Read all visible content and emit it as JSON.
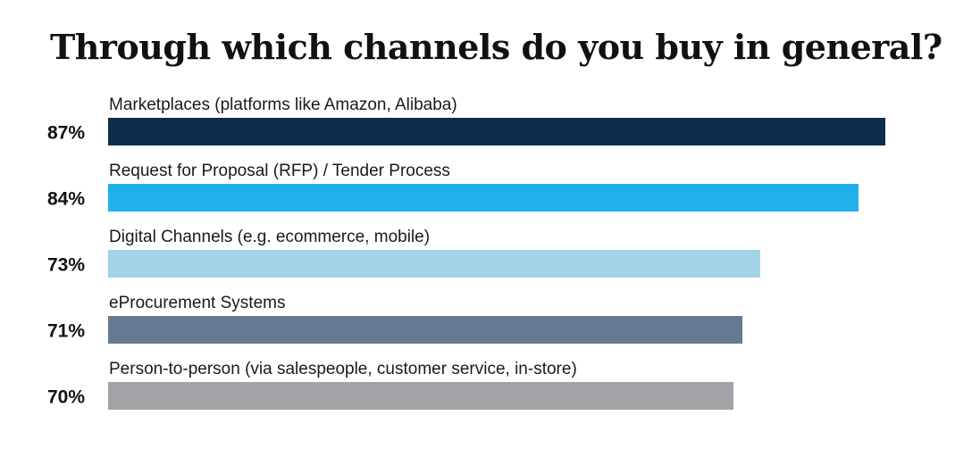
{
  "chart_data": {
    "type": "bar",
    "title": "Through which channels do you buy in general?",
    "categories": [
      "Marketplaces (platforms like Amazon, Alibaba)",
      "Request for Proposal (RFP) / Tender Process",
      "Digital Channels (e.g. ecommerce, mobile)",
      "eProcurement Systems",
      "Person-to-person (via salespeople, customer service, in-store)"
    ],
    "values": [
      87,
      84,
      73,
      71,
      70
    ],
    "value_labels": [
      "87%",
      "84%",
      "73%",
      "71%",
      "70%"
    ],
    "colors": [
      "#0d2d4b",
      "#1fb0ea",
      "#a4d2e6",
      "#667b92",
      "#a2a3a6"
    ],
    "xlim": [
      0,
      87
    ],
    "orientation": "horizontal",
    "grid": false
  }
}
